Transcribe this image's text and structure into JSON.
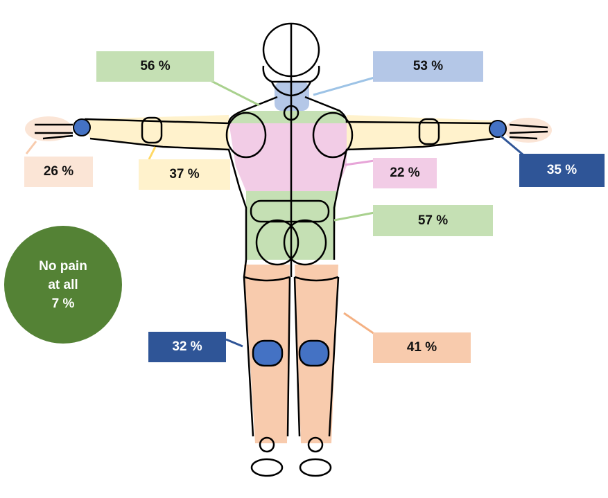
{
  "regions": [
    {
      "id": "upper-back",
      "label": "56 %",
      "color": "#c5e0b4"
    },
    {
      "id": "neck",
      "label": "53 %",
      "color": "#b4c7e7"
    },
    {
      "id": "hands",
      "label": "26 %",
      "color": "#fbe5d6"
    },
    {
      "id": "arms",
      "label": "37 %",
      "color": "#fff2cc"
    },
    {
      "id": "shoulders",
      "label": "22 %",
      "color": "#f2cce6"
    },
    {
      "id": "wrists",
      "label": "35 %",
      "color": "#2f5597"
    },
    {
      "id": "lower-back",
      "label": "57 %",
      "color": "#c5e0b4"
    },
    {
      "id": "legs",
      "label": "41 %",
      "color": "#f8cbad"
    },
    {
      "id": "knees",
      "label": "32 %",
      "color": "#2f5597"
    }
  ],
  "no_pain": {
    "line1": "No pain",
    "line2": "at all",
    "line3": "7 %",
    "color": "#548235"
  },
  "joint_color": "#4472c4"
}
